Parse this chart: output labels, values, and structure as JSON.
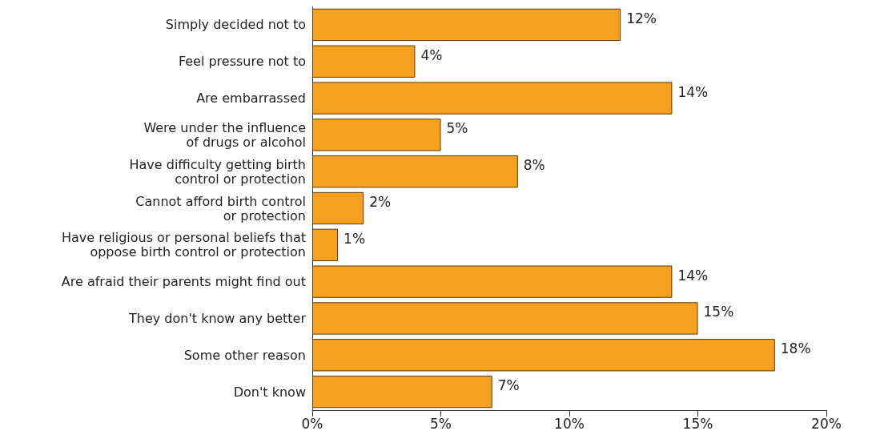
{
  "chart_data": {
    "type": "bar",
    "orientation": "horizontal",
    "categories": [
      "Simply decided not to",
      "Feel pressure not to",
      "Are embarrassed",
      "Were under the influence\nof drugs or alcohol",
      "Have difficulty getting birth\ncontrol or protection",
      "Cannot afford birth control\nor protection",
      "Have religious or personal beliefs that\noppose birth control or protection",
      "Are afraid their parents might find out",
      "They don't know any better",
      "Some other reason",
      "Don't know"
    ],
    "values": [
      12,
      4,
      14,
      5,
      8,
      2,
      1,
      14,
      15,
      18,
      7
    ],
    "value_labels": [
      "12%",
      "4%",
      "14%",
      "5%",
      "8%",
      "2%",
      "1%",
      "14%",
      "15%",
      "18%",
      "7%"
    ],
    "color": "#f5a11f",
    "xlim": [
      0,
      20
    ],
    "xticks": [
      {
        "value": 0,
        "label": "0%"
      },
      {
        "value": 5,
        "label": "5%"
      },
      {
        "value": 10,
        "label": "10%"
      },
      {
        "value": 15,
        "label": "15%"
      },
      {
        "value": 20,
        "label": "20%"
      }
    ],
    "grid": false
  }
}
